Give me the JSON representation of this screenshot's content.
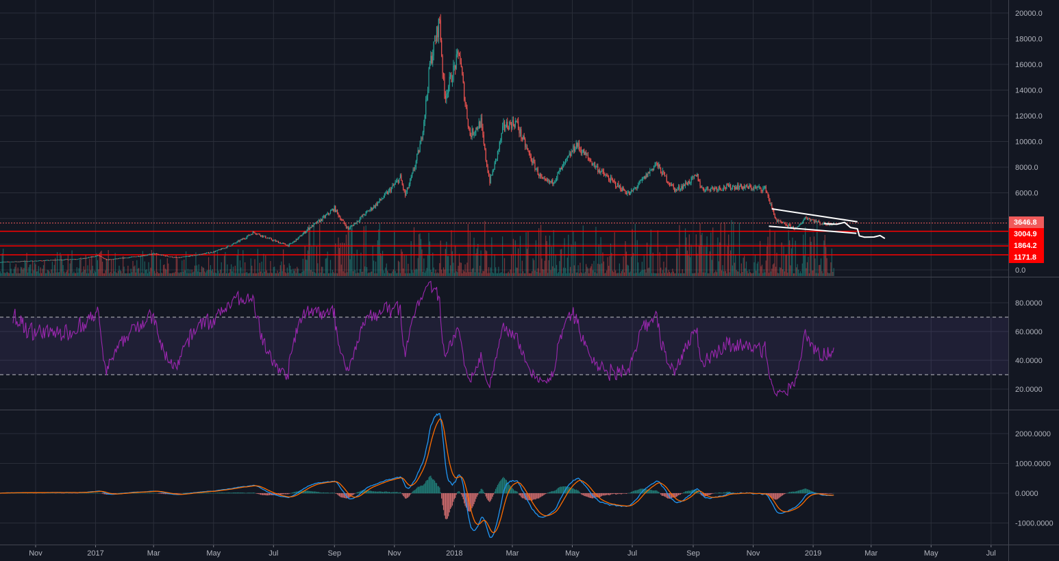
{
  "chart_data": {
    "type": "candlestick",
    "colors": {
      "background": "#131722",
      "grid": "#2a2e39",
      "up": "#26a69a",
      "down": "#ef5350",
      "rsi": "#9c27b0",
      "macd": "#2196f3",
      "signal": "#ff6d00",
      "level": "#ff0000",
      "drawing": "#ffffff"
    },
    "price_axis": {
      "ticks": [
        0,
        6000,
        8000,
        10000,
        12000,
        14000,
        16000,
        18000,
        20000
      ],
      "ylim": [
        0,
        21000
      ]
    },
    "rsi_axis": {
      "ticks": [
        20,
        40,
        60,
        80
      ],
      "bands": [
        30,
        70
      ],
      "ylim": [
        5,
        95
      ]
    },
    "macd_axis": {
      "ticks": [
        -1000,
        0,
        1000,
        2000
      ],
      "ylim": [
        -1700,
        2800
      ]
    },
    "time_axis": {
      "ticks": [
        {
          "date": "2016-11-01",
          "label": "Nov"
        },
        {
          "date": "2017-01-01",
          "label": "2017"
        },
        {
          "date": "2017-03-01",
          "label": "Mar"
        },
        {
          "date": "2017-05-01",
          "label": "May"
        },
        {
          "date": "2017-07-01",
          "label": "Jul"
        },
        {
          "date": "2017-09-01",
          "label": "Sep"
        },
        {
          "date": "2017-11-01",
          "label": "Nov"
        },
        {
          "date": "2018-01-01",
          "label": "2018"
        },
        {
          "date": "2018-03-01",
          "label": "Mar"
        },
        {
          "date": "2018-05-01",
          "label": "May"
        },
        {
          "date": "2018-07-01",
          "label": "Jul"
        },
        {
          "date": "2018-09-01",
          "label": "Sep"
        },
        {
          "date": "2018-11-01",
          "label": "Nov"
        },
        {
          "date": "2019-01-01",
          "label": "2019"
        },
        {
          "date": "2019-03-01",
          "label": "Mar"
        },
        {
          "date": "2019-05-01",
          "label": "May"
        },
        {
          "date": "2019-07-01",
          "label": "Jul"
        }
      ],
      "range": [
        "2016-09-25",
        "2019-07-18"
      ]
    },
    "price_path": [
      [
        "2016-09-25",
        600
      ],
      [
        "2016-11-01",
        700
      ],
      [
        "2016-12-20",
        880
      ],
      [
        "2017-01-04",
        1130
      ],
      [
        "2017-01-12",
        780
      ],
      [
        "2017-03-02",
        1250
      ],
      [
        "2017-03-25",
        940
      ],
      [
        "2017-05-01",
        1400
      ],
      [
        "2017-06-11",
        2950
      ],
      [
        "2017-07-16",
        1900
      ],
      [
        "2017-08-05",
        3200
      ],
      [
        "2017-09-01",
        4800
      ],
      [
        "2017-09-15",
        3200
      ],
      [
        "2017-10-01",
        4300
      ],
      [
        "2017-11-07",
        7200
      ],
      [
        "2017-11-12",
        5800
      ],
      [
        "2017-11-28",
        10000
      ],
      [
        "2017-12-07",
        16000
      ],
      [
        "2017-12-17",
        19500
      ],
      [
        "2017-12-22",
        13500
      ],
      [
        "2018-01-06",
        17000
      ],
      [
        "2018-01-17",
        10500
      ],
      [
        "2018-01-28",
        11500
      ],
      [
        "2018-02-06",
        6900
      ],
      [
        "2018-02-20",
        11200
      ],
      [
        "2018-03-05",
        11500
      ],
      [
        "2018-04-01",
        6900
      ],
      [
        "2018-04-10",
        6800
      ],
      [
        "2018-05-05",
        9800
      ],
      [
        "2018-06-01",
        7500
      ],
      [
        "2018-06-28",
        5900
      ],
      [
        "2018-07-25",
        8300
      ],
      [
        "2018-08-14",
        6200
      ],
      [
        "2018-09-05",
        7300
      ],
      [
        "2018-09-10",
        6300
      ],
      [
        "2018-10-15",
        6500
      ],
      [
        "2018-11-14",
        6300
      ],
      [
        "2018-11-25",
        3800
      ],
      [
        "2018-12-15",
        3200
      ],
      [
        "2018-12-24",
        4100
      ],
      [
        "2019-01-10",
        3600
      ],
      [
        "2019-01-22",
        3600
      ]
    ],
    "horizontal_levels": [
      {
        "price": 3646.8,
        "label": "3646.8",
        "style": "dotted",
        "color": "#f05b5b"
      },
      {
        "price": 3004.9,
        "label": "3004.9",
        "style": "solid",
        "color": "#ff0000"
      },
      {
        "price": 1864.2,
        "label": "1864.2",
        "style": "solid",
        "color": "#ff0000"
      },
      {
        "price": 1171.8,
        "label": "1171.8",
        "style": "solid",
        "color": "#ff0000"
      }
    ],
    "drawings": {
      "upper_trendline": [
        [
          "2018-11-20",
          4750
        ],
        [
          "2019-02-15",
          3750
        ]
      ],
      "lower_trendline": [
        [
          "2018-11-17",
          3400
        ],
        [
          "2019-02-14",
          2850
        ]
      ],
      "projection_path": [
        [
          "2019-01-12",
          3600
        ],
        [
          "2019-01-25",
          3550
        ],
        [
          "2019-02-02",
          3700
        ],
        [
          "2019-02-08",
          3300
        ],
        [
          "2019-02-15",
          3200
        ],
        [
          "2019-02-17",
          2650
        ],
        [
          "2019-02-22",
          2550
        ],
        [
          "2019-03-04",
          2560
        ],
        [
          "2019-03-10",
          2680
        ],
        [
          "2019-03-15",
          2450
        ]
      ]
    }
  }
}
